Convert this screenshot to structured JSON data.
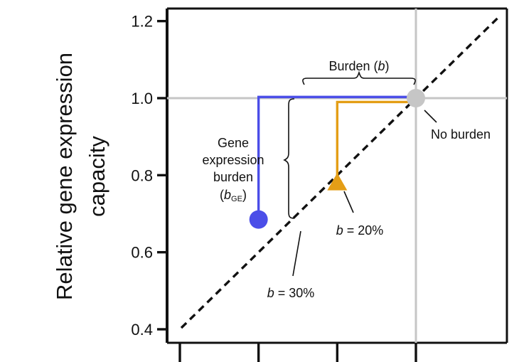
{
  "chart_data": {
    "type": "scatter",
    "title": "",
    "ylabel_line1": "Relative gene expression",
    "ylabel_line2": "capacity",
    "xlabel": "",
    "ylim": [
      0.38,
      1.22
    ],
    "xlim": [
      0.2,
      1.25
    ],
    "yticks": [
      0.4,
      0.6,
      0.8,
      1.0,
      1.2
    ],
    "ytick_labels": [
      "0.4",
      "0.6",
      "0.8",
      "1.0",
      "1.2"
    ],
    "xticks": [
      0.3,
      0.5,
      0.7,
      0.9
    ],
    "reference_lines": {
      "horizontal_y": 1.0,
      "vertical_x": 0.9,
      "diagonal": "y = x"
    },
    "points": [
      {
        "name": "No burden",
        "x": 0.9,
        "y": 1.0,
        "marker": "circle",
        "color": "#c6c6c6"
      },
      {
        "name": "b = 20%",
        "x": 0.7,
        "y": 0.78,
        "marker": "triangle",
        "color": "#e49e16"
      },
      {
        "name": "b = 30%",
        "x": 0.5,
        "y": 0.685,
        "marker": "circle",
        "color": "#4b4ee8"
      }
    ],
    "paths": [
      {
        "name": "blue-path",
        "color": "#4b4ee8",
        "from_x": 0.5,
        "from_y": 0.685,
        "top_y": 1.003,
        "to_x": 0.9
      },
      {
        "name": "orange-path",
        "color": "#e49e16",
        "from_x": 0.7,
        "from_y": 0.78,
        "top_y": 0.99,
        "to_x": 0.9
      }
    ],
    "annotations": {
      "burden_pre": "Burden (",
      "burden_var": "b",
      "burden_post": ")",
      "no_burden": "No burden",
      "b20_var": "b",
      "b20_rest": " = 20%",
      "b30_var": "b",
      "b30_rest": " = 30%",
      "ge_line1": "Gene",
      "ge_line2": "expression",
      "ge_line3": "burden",
      "ge_open": "(",
      "ge_var": "b",
      "ge_sub": "GE",
      "ge_close": ")"
    },
    "colors": {
      "axis": "#111111",
      "grid": "#c6c6c6",
      "diagonal": "#111111"
    }
  }
}
